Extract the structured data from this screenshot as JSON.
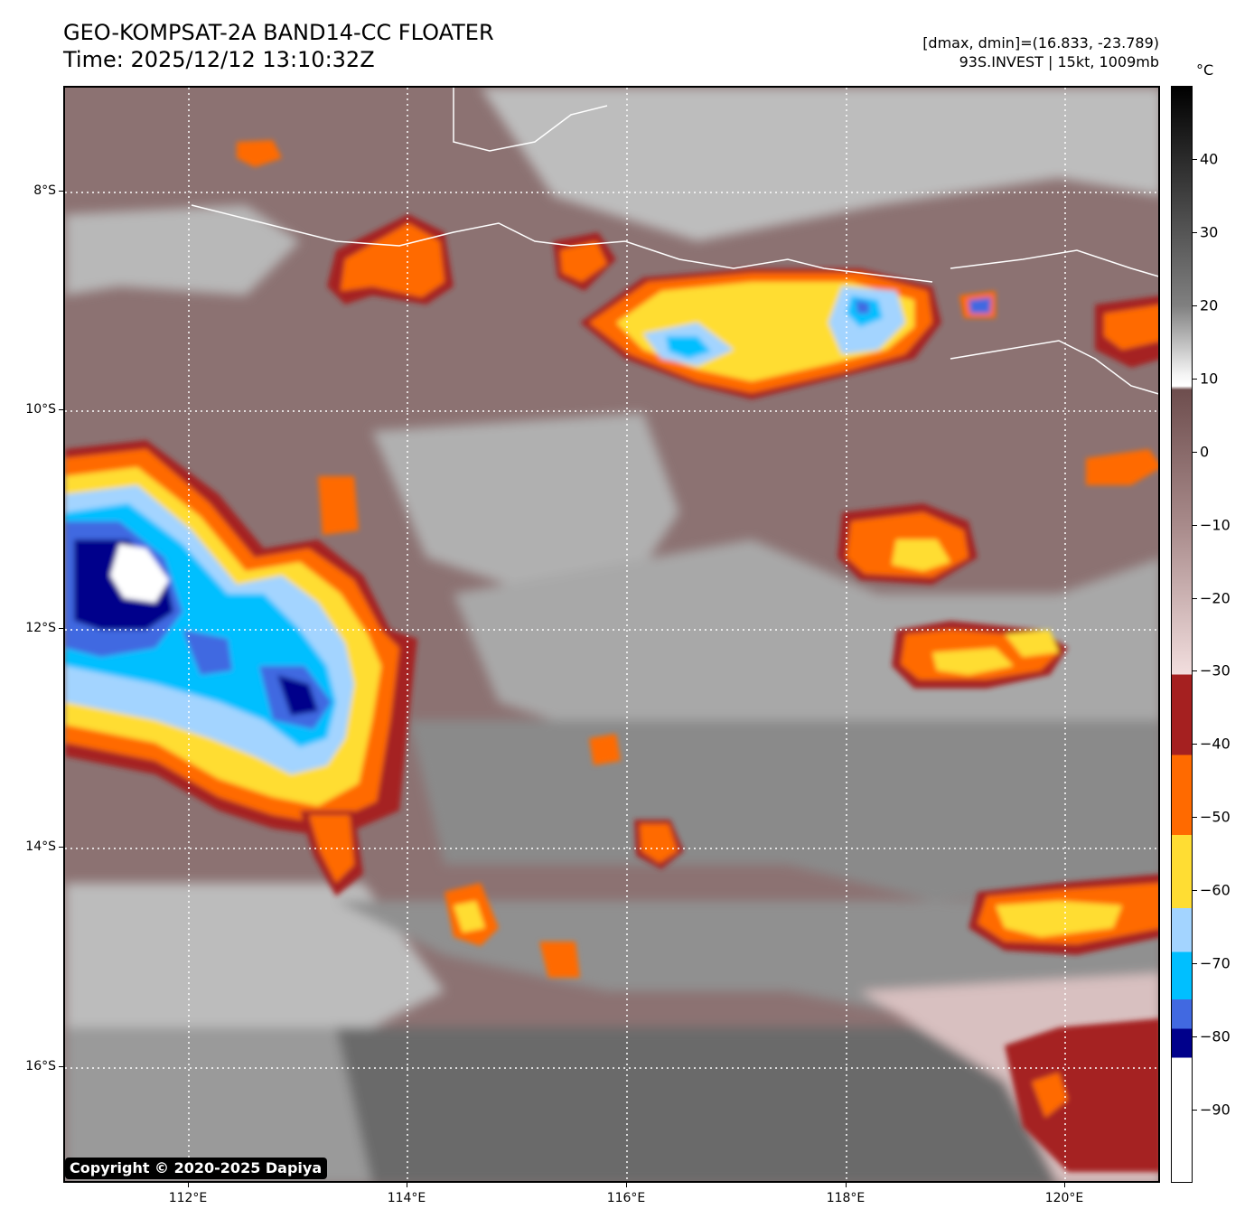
{
  "header": {
    "title_line1": "GEO-KOMPSAT-2A BAND14-CC FLOATER",
    "title_line2": "Time: 2025/12/12 13:10:32Z",
    "info_line1": "[dmax, dmin]=(16.833, -23.789)",
    "info_line2": "93S.INVEST | 15kt, 1009mb"
  },
  "map": {
    "lat_labels": [
      "8°S",
      "10°S",
      "12°S",
      "14°S",
      "16°S"
    ],
    "lon_labels": [
      "112°E",
      "114°E",
      "116°E",
      "118°E",
      "120°E"
    ],
    "lat_range": [
      -17.0,
      -7.0
    ],
    "lon_range": [
      110.85,
      120.85
    ],
    "lat_ticks": [
      -8,
      -10,
      -12,
      -14,
      -16
    ],
    "lon_ticks": [
      112,
      114,
      116,
      118,
      120
    ]
  },
  "copyright": "Copyright © 2020-2025 Dapiya",
  "colorbar": {
    "unit": "°C",
    "range": [
      50,
      -100
    ],
    "tick_values": [
      40,
      30,
      20,
      10,
      0,
      -10,
      -20,
      -30,
      -40,
      -50,
      -60,
      -70,
      -80,
      -90
    ],
    "tick_labels": [
      "40",
      "30",
      "20",
      "10",
      "0",
      "−10",
      "−20",
      "−30",
      "−40",
      "−50",
      "−60",
      "−70",
      "−80",
      "−90"
    ],
    "colors": {
      "very_cold": "#ffffff",
      "c_85": "#00008b",
      "c_80": "#4169e1",
      "c_75": "#00bfff",
      "c_70": "#a3d4ff",
      "c_60": "#ffdd33",
      "c_50": "#ff6a00",
      "c_40": "#a52020",
      "warm_pink": "#f2dede",
      "warm_brown": "#6e4e4e",
      "gray_light": "#f5f5f5",
      "gray_dark": "#000000"
    }
  }
}
